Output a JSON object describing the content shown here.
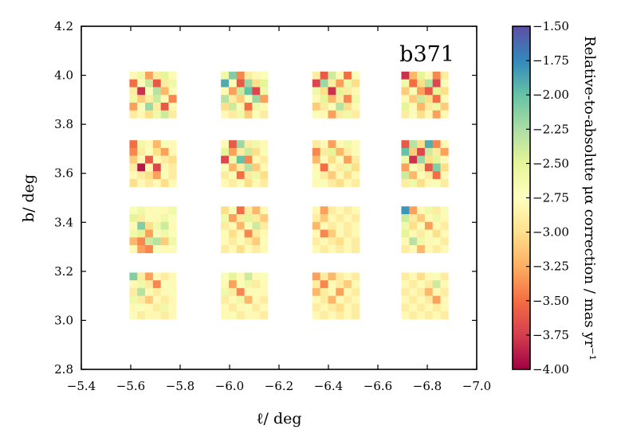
{
  "chart_data": {
    "type": "heatmap",
    "annotation": "b371",
    "xlabel": "ℓ/ deg",
    "ylabel": "b/ deg",
    "xlim": [
      -5.4,
      -7.0
    ],
    "ylim": [
      2.8,
      4.2
    ],
    "x_ticks": [
      -5.4,
      -5.6,
      -5.8,
      -6.0,
      -6.2,
      -6.4,
      -6.6,
      -6.8,
      -7.0
    ],
    "x_tick_labels": [
      "−5.4",
      "−5.6",
      "−5.8",
      "−6.0",
      "−6.2",
      "−6.4",
      "−6.6",
      "−6.8",
      "−7.0"
    ],
    "y_ticks": [
      2.8,
      3.0,
      3.2,
      3.4,
      3.6,
      3.8,
      4.0,
      4.2
    ],
    "y_tick_labels": [
      "2.8",
      "3.0",
      "3.2",
      "3.4",
      "3.6",
      "3.8",
      "4.0",
      "4.2"
    ],
    "colorbar": {
      "label": "Relative-to-absolute μα correction / mas yr⁻¹",
      "range": [
        -4.0,
        -1.5
      ],
      "ticks": [
        -1.5,
        -1.75,
        -2.0,
        -2.25,
        -2.5,
        -2.75,
        -3.0,
        -3.25,
        -3.5,
        -3.75,
        -4.0
      ],
      "tick_labels": [
        "−1.50",
        "−1.75",
        "−2.00",
        "−2.25",
        "−2.50",
        "−2.75",
        "−3.00",
        "−3.25",
        "−3.50",
        "−3.75",
        "−4.00"
      ],
      "colormap": "Spectral"
    },
    "tiles": {
      "l_centers": [
        -5.69,
        -6.06,
        -6.43,
        -6.79
      ],
      "b_centers": [
        3.92,
        3.64,
        3.37,
        3.1
      ],
      "half_width_l": 0.095,
      "half_width_b": 0.095,
      "cells_per_side": 6,
      "rows": [
        [
          [
            -2.8,
            -2.6,
            -3.3,
            -2.9,
            -2.5,
            -2.8,
            -3.5,
            -2.7,
            -2.4,
            -3.6,
            -2.9,
            -2.6,
            -2.9,
            -3.8,
            -2.7,
            -2.3,
            -3.2,
            -2.8,
            -2.6,
            -3.1,
            -2.9,
            -2.4,
            -2.8,
            -3.4,
            -3.3,
            -2.7,
            -2.2,
            -2.9,
            -3.6,
            -2.8,
            -2.9,
            -2.8,
            -3.0,
            -2.6,
            -2.4,
            -2.9
          ],
          [
            -2.6,
            -2.1,
            -3.4,
            -2.9,
            -2.8,
            -2.7,
            -1.9,
            -2.7,
            -3.6,
            -2.2,
            -3.0,
            -2.5,
            -2.8,
            -3.3,
            -2.4,
            -2.0,
            -3.7,
            -2.6,
            -2.3,
            -2.9,
            -3.1,
            -2.7,
            -2.2,
            -3.3,
            -3.0,
            -2.4,
            -2.8,
            -3.5,
            -2.6,
            -2.8,
            -2.8,
            -2.9,
            -2.6,
            -3.1,
            -2.7,
            -2.9
          ],
          [
            -2.9,
            -3.6,
            -2.4,
            -2.8,
            -3.5,
            -2.7,
            -3.7,
            -2.2,
            -2.9,
            -3.3,
            -2.6,
            -3.0,
            -2.6,
            -3.0,
            -3.8,
            -2.5,
            -2.9,
            -2.8,
            -2.8,
            -2.5,
            -3.2,
            -2.9,
            -3.4,
            -2.6,
            -3.1,
            -2.9,
            -2.7,
            -2.3,
            -3.0,
            -2.8,
            -2.7,
            -2.8,
            -3.3,
            -2.9,
            -2.6,
            -2.9
          ],
          [
            -3.8,
            -3.2,
            -2.5,
            -2.8,
            -3.4,
            -2.9,
            -2.6,
            -3.5,
            -3.0,
            -2.3,
            -3.7,
            -2.7,
            -3.1,
            -2.7,
            -3.3,
            -3.6,
            -2.5,
            -3.0,
            -2.8,
            -3.1,
            -2.4,
            -3.0,
            -3.5,
            -2.7,
            -2.5,
            -2.8,
            -3.2,
            -2.9,
            -2.6,
            -3.1,
            -2.9,
            -2.7,
            -3.0,
            -2.8,
            -3.3,
            -2.8
          ]
        ],
        [
          [
            -3.5,
            -2.6,
            -2.8,
            -3.2,
            -2.7,
            -2.8,
            -3.4,
            -2.9,
            -2.7,
            -3.0,
            -3.3,
            -2.8,
            -3.1,
            -2.8,
            -3.6,
            -2.8,
            -2.9,
            -3.0,
            -2.9,
            -3.9,
            -2.8,
            -3.7,
            -2.8,
            -2.9,
            -2.8,
            -2.9,
            -3.0,
            -3.3,
            -2.7,
            -2.9,
            -3.0,
            -2.8,
            -2.9,
            -2.8,
            -3.0,
            -2.8
          ],
          [
            -2.8,
            -3.6,
            -2.2,
            -2.9,
            -2.6,
            -2.8,
            -2.5,
            -3.3,
            -2.9,
            -2.4,
            -3.0,
            -2.7,
            -3.7,
            -2.6,
            -2.0,
            -3.4,
            -2.8,
            -2.9,
            -2.7,
            -3.2,
            -2.9,
            -2.3,
            -3.1,
            -2.8,
            -2.9,
            -2.7,
            -3.5,
            -2.9,
            -2.6,
            -3.0,
            -2.8,
            -2.9,
            -2.7,
            -3.0,
            -2.8,
            -2.9
          ],
          [
            -2.9,
            -2.8,
            -3.3,
            -2.8,
            -2.6,
            -2.8,
            -3.4,
            -2.9,
            -2.5,
            -3.2,
            -2.9,
            -2.7,
            -3.2,
            -2.8,
            -3.0,
            -2.7,
            -3.3,
            -2.9,
            -2.8,
            -3.5,
            -2.8,
            -2.9,
            -2.6,
            -3.0,
            -2.7,
            -2.9,
            -3.1,
            -2.8,
            -3.0,
            -2.8,
            -2.8,
            -2.7,
            -2.9,
            -3.0,
            -2.8,
            -2.9
          ],
          [
            -3.6,
            -2.3,
            -3.0,
            -1.9,
            -3.4,
            -2.8,
            -2.0,
            -3.1,
            -3.7,
            -2.4,
            -2.9,
            -3.3,
            -2.6,
            -3.8,
            -2.2,
            -3.0,
            -2.5,
            -2.8,
            -3.3,
            -2.7,
            -2.9,
            -3.6,
            -2.1,
            -3.0,
            -2.4,
            -3.2,
            -2.7,
            -2.9,
            -3.5,
            -2.8,
            -2.9,
            -2.6,
            -3.0,
            -2.8,
            -2.7,
            -2.9
          ]
        ],
        [
          [
            -2.7,
            -2.6,
            -2.8,
            -2.7,
            -2.8,
            -2.6,
            -2.5,
            -2.9,
            -2.7,
            -2.8,
            -2.6,
            -2.7,
            -2.8,
            -2.1,
            -3.0,
            -2.6,
            -2.4,
            -2.8,
            -2.6,
            -2.5,
            -3.3,
            -2.7,
            -2.6,
            -2.7,
            -3.2,
            -3.4,
            -2.4,
            -2.3,
            -3.1,
            -2.6,
            -2.8,
            -3.3,
            -3.4,
            -2.7,
            -2.8,
            -2.7
          ],
          [
            -3.0,
            -2.7,
            -3.5,
            -2.9,
            -3.2,
            -2.8,
            -2.6,
            -3.3,
            -2.9,
            -2.5,
            -2.9,
            -3.1,
            -2.9,
            -2.8,
            -3.2,
            -2.7,
            -2.4,
            -2.9,
            -2.7,
            -3.0,
            -2.8,
            -3.4,
            -2.9,
            -2.8,
            -2.8,
            -2.9,
            -2.7,
            -2.9,
            -3.1,
            -2.7,
            -2.9,
            -2.8,
            -3.0,
            -2.8,
            -2.9,
            -2.8
          ],
          [
            -2.8,
            -3.3,
            -2.9,
            -2.8,
            -2.9,
            -2.8,
            -2.9,
            -3.1,
            -2.8,
            -2.9,
            -2.8,
            -2.9,
            -3.2,
            -2.8,
            -2.9,
            -2.8,
            -2.9,
            -2.8,
            -2.8,
            -3.4,
            -3.1,
            -2.8,
            -2.9,
            -2.8,
            -2.9,
            -2.8,
            -2.9,
            -3.0,
            -2.8,
            -2.9,
            -2.8,
            -2.9,
            -2.8,
            -2.9,
            -2.8,
            -2.9
          ],
          [
            -1.8,
            -3.3,
            -2.8,
            -2.6,
            -2.9,
            -2.7,
            -2.4,
            -2.9,
            -3.1,
            -2.8,
            -2.6,
            -2.8,
            -2.6,
            -3.0,
            -2.7,
            -3.3,
            -2.8,
            -2.9,
            -2.5,
            -2.8,
            -2.9,
            -2.7,
            -3.0,
            -2.8,
            -2.8,
            -2.3,
            -2.6,
            -2.8,
            -2.7,
            -2.9,
            -2.9,
            -2.8,
            -3.2,
            -2.8,
            -2.9,
            -2.8
          ]
        ],
        [
          [
            -2.1,
            -2.9,
            -3.3,
            -2.8,
            -2.9,
            -2.8,
            -2.8,
            -2.6,
            -2.9,
            -3.4,
            -2.7,
            -2.8,
            -2.9,
            -2.3,
            -2.8,
            -2.9,
            -2.8,
            -2.7,
            -2.6,
            -2.9,
            -3.1,
            -2.8,
            -2.9,
            -2.8,
            -2.8,
            -2.7,
            -2.8,
            -2.9,
            -2.6,
            -2.8,
            -2.7,
            -2.9,
            -2.8,
            -2.8,
            -2.9,
            -2.8
          ],
          [
            -2.7,
            -2.5,
            -2.8,
            -2.4,
            -2.8,
            -2.7,
            -2.8,
            -3.3,
            -2.7,
            -2.6,
            -2.9,
            -2.8,
            -2.6,
            -2.9,
            -3.4,
            -2.8,
            -2.7,
            -2.8,
            -2.9,
            -2.8,
            -2.6,
            -3.2,
            -2.8,
            -2.9,
            -2.8,
            -2.9,
            -2.8,
            -2.7,
            -2.9,
            -2.8,
            -2.8,
            -2.7,
            -2.9,
            -2.8,
            -2.8,
            -2.9
          ],
          [
            -3.3,
            -2.9,
            -3.2,
            -2.9,
            -2.8,
            -2.9,
            -2.9,
            -3.4,
            -2.8,
            -2.9,
            -3.1,
            -2.8,
            -3.2,
            -2.9,
            -2.8,
            -3.3,
            -2.8,
            -2.9,
            -2.8,
            -2.9,
            -3.2,
            -2.8,
            -2.9,
            -2.8,
            -2.9,
            -2.8,
            -2.9,
            -3.0,
            -2.8,
            -2.9,
            -2.8,
            -2.9,
            -2.8,
            -2.9,
            -2.8,
            -2.9
          ],
          [
            -2.9,
            -2.8,
            -3.0,
            -2.8,
            -2.7,
            -2.9,
            -2.8,
            -2.9,
            -2.7,
            -2.9,
            -2.4,
            -2.8,
            -2.9,
            -2.8,
            -2.9,
            -3.2,
            -2.8,
            -2.9,
            -2.8,
            -2.9,
            -2.8,
            -2.9,
            -3.3,
            -2.8,
            -2.9,
            -2.8,
            -2.9,
            -2.8,
            -2.9,
            -2.8,
            -2.8,
            -2.9,
            -2.8,
            -2.9,
            -2.8,
            -2.9
          ]
        ]
      ]
    }
  }
}
